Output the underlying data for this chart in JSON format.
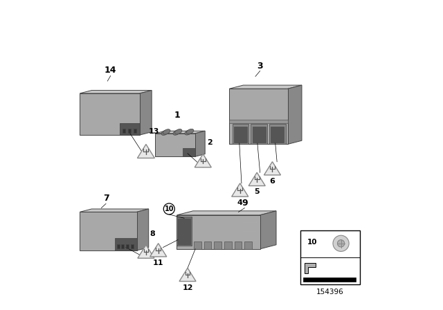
{
  "background_color": "#ffffff",
  "part_number": "154396",
  "gray_face": "#a8a8a8",
  "gray_top": "#c8c8c8",
  "gray_side": "#888888",
  "gray_conn": "#707070",
  "gray_dark_conn": "#555555",
  "border_color": "#444444",
  "tri_fill": "#e8e8e8",
  "tri_edge": "#888888",
  "modules": {
    "14": {
      "bx": 0.04,
      "by": 0.57,
      "bw": 0.19,
      "bh": 0.13,
      "bd": 0.055,
      "sk": 0.38
    },
    "1": {
      "bx": 0.285,
      "by": 0.505,
      "bw": 0.125,
      "bh": 0.085,
      "bd": 0.042,
      "sk": 0.38
    },
    "3": {
      "bx": 0.53,
      "by": 0.545,
      "bw": 0.185,
      "bh": 0.175,
      "bd": 0.065,
      "sk": 0.38
    },
    "7": {
      "bx": 0.04,
      "by": 0.185,
      "bw": 0.175,
      "bh": 0.125,
      "bd": 0.055,
      "sk": 0.38
    },
    "9": {
      "bx": 0.355,
      "by": 0.185,
      "bw": 0.265,
      "bh": 0.115,
      "bd": 0.075,
      "sk": 0.38
    }
  }
}
